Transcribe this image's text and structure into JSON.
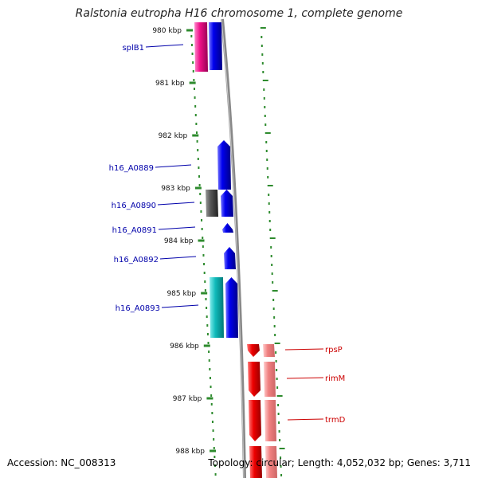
{
  "title": "Ralstonia eutropha H16 chromosome 1, complete genome",
  "footer": {
    "accession": "Accession: NC_008313",
    "summary": "Topology: circular; Length: 4,052,032 bp; Genes: 3,711"
  },
  "scale": {
    "ticks": [
      {
        "label": "980 kbp",
        "kbp": 980
      },
      {
        "label": "981 kbp",
        "kbp": 981
      },
      {
        "label": "982 kbp",
        "kbp": 982
      },
      {
        "label": "983 kbp",
        "kbp": 983
      },
      {
        "label": "984 kbp",
        "kbp": 984
      },
      {
        "label": "985 kbp",
        "kbp": 985
      },
      {
        "label": "986 kbp",
        "kbp": 986
      },
      {
        "label": "987 kbp",
        "kbp": 987
      },
      {
        "label": "988 kbp",
        "kbp": 988
      }
    ]
  },
  "left_labels": [
    {
      "text": "splB1",
      "color": "#0000aa"
    },
    {
      "text": "h16_A0889",
      "color": "#0000aa"
    },
    {
      "text": "h16_A0890",
      "color": "#0000aa"
    },
    {
      "text": "h16_A0891",
      "color": "#0000aa"
    },
    {
      "text": "h16_A0892",
      "color": "#0000aa"
    },
    {
      "text": "h16_A0893",
      "color": "#0000aa"
    }
  ],
  "right_labels": [
    {
      "text": "rpsP",
      "color": "#cc0000"
    },
    {
      "text": "rimM",
      "color": "#cc0000"
    },
    {
      "text": "trmD",
      "color": "#cc0000"
    }
  ],
  "colors": {
    "tick": "#2e8b2e",
    "forward_gene": "#0000ee",
    "pink_gene": "#ee1188",
    "grey_gene": "#555555",
    "cyan_gene": "#11bbbb",
    "reverse_gene": "#ee0000",
    "reverse_gene_light": "#f08080",
    "backbone": "#888888"
  }
}
